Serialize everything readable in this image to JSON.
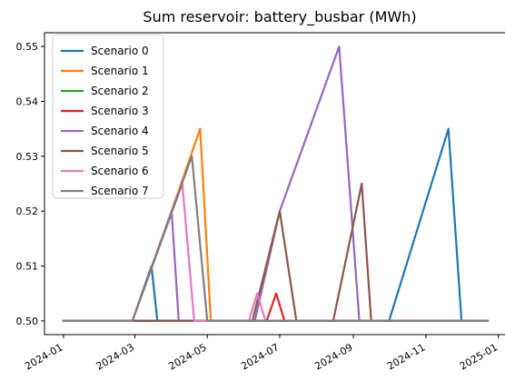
{
  "chart_data": {
    "type": "line",
    "title": "Sum reservoir: battery_busbar (MWh)",
    "xlabel": "",
    "ylabel": "",
    "xlim": [
      "2023-12-16",
      "2025-01-15"
    ],
    "ylim": [
      0.4975,
      0.5525
    ],
    "x_ticks": [
      "2024-01-01",
      "2024-03-01",
      "2024-05-01",
      "2024-07-01",
      "2024-09-01",
      "2024-11-01",
      "2025-01-01"
    ],
    "x_tick_labels": [
      "2024-01",
      "2024-03",
      "2024-05",
      "2024-07",
      "2024-09",
      "2024-11",
      "2025-01"
    ],
    "y_ticks": [
      0.5,
      0.51,
      0.52,
      0.53,
      0.54,
      0.55
    ],
    "y_tick_labels": [
      "0.50",
      "0.51",
      "0.52",
      "0.53",
      "0.54",
      "0.55"
    ],
    "grid": false,
    "legend_position": "upper-left",
    "series": [
      {
        "name": "Scenario 0",
        "color": "#1f77b4",
        "x": [
          "2024-01-01",
          "2024-02-28",
          "2024-03-15",
          "2024-03-20",
          "2024-10-01",
          "2024-11-20",
          "2024-12-01",
          "2024-12-23"
        ],
        "y": [
          0.5,
          0.5,
          0.51,
          0.5,
          0.5,
          0.535,
          0.5,
          0.5
        ]
      },
      {
        "name": "Scenario 1",
        "color": "#ff7f0e",
        "x": [
          "2024-01-01",
          "2024-02-28",
          "2024-04-01",
          "2024-04-25",
          "2024-05-04",
          "2024-12-23"
        ],
        "y": [
          0.5,
          0.5,
          0.52,
          0.535,
          0.5,
          0.5
        ]
      },
      {
        "name": "Scenario 2",
        "color": "#2ca02c",
        "x": [
          "2024-01-01",
          "2024-12-23"
        ],
        "y": [
          0.5,
          0.5
        ]
      },
      {
        "name": "Scenario 3",
        "color": "#d62728",
        "x": [
          "2024-01-01",
          "2024-06-20",
          "2024-06-28",
          "2024-07-05",
          "2024-12-23"
        ],
        "y": [
          0.5,
          0.5,
          0.505,
          0.5,
          0.5
        ]
      },
      {
        "name": "Scenario 4",
        "color": "#9467bd",
        "x": [
          "2024-01-01",
          "2024-02-28",
          "2024-04-01",
          "2024-04-07",
          "2024-06-10",
          "2024-07-01",
          "2024-08-20",
          "2024-09-06",
          "2024-12-23"
        ],
        "y": [
          0.5,
          0.5,
          0.52,
          0.5,
          0.5,
          0.52,
          0.55,
          0.5,
          0.5
        ]
      },
      {
        "name": "Scenario 5",
        "color": "#8c564b",
        "x": [
          "2024-01-01",
          "2024-06-08",
          "2024-07-01",
          "2024-07-15",
          "2024-08-15",
          "2024-09-08",
          "2024-09-16",
          "2024-12-23"
        ],
        "y": [
          0.5,
          0.5,
          0.52,
          0.5,
          0.5,
          0.525,
          0.5,
          0.5
        ]
      },
      {
        "name": "Scenario 6",
        "color": "#e377c2",
        "x": [
          "2024-01-01",
          "2024-02-28",
          "2024-04-10",
          "2024-04-20",
          "2024-06-05",
          "2024-06-12",
          "2024-06-19",
          "2024-12-23"
        ],
        "y": [
          0.5,
          0.5,
          0.525,
          0.5,
          0.5,
          0.505,
          0.5,
          0.5
        ]
      },
      {
        "name": "Scenario 7",
        "color": "#7f7f7f",
        "x": [
          "2024-01-01",
          "2024-02-28",
          "2024-04-18",
          "2024-05-01",
          "2024-12-23"
        ],
        "y": [
          0.5,
          0.5,
          0.53,
          0.5,
          0.5
        ]
      }
    ]
  }
}
